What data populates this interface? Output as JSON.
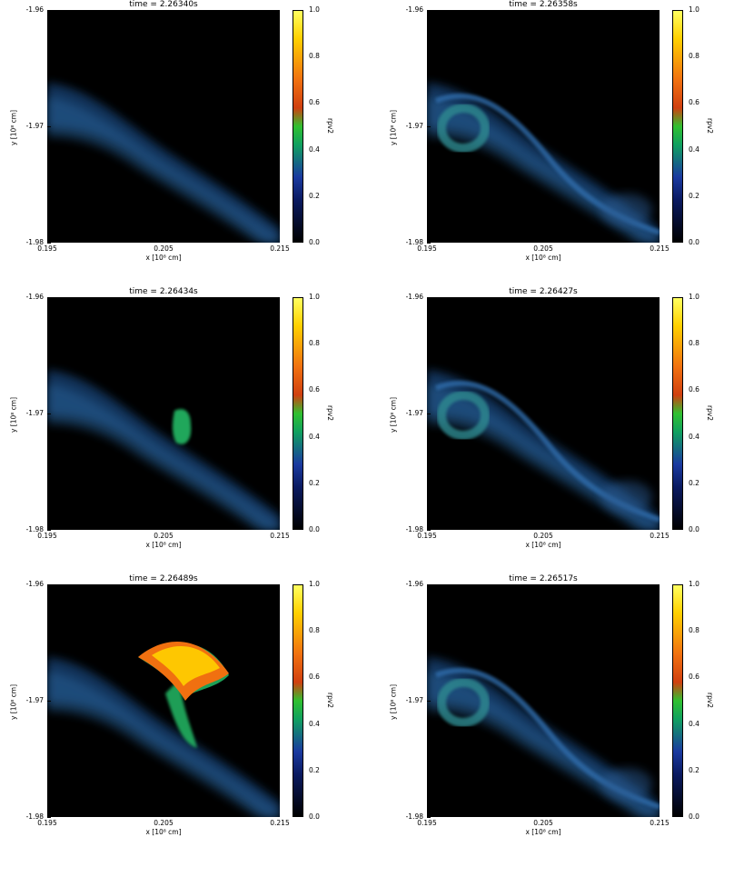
{
  "colors": {
    "plot_bg": "#000000",
    "smoke": "#1f4f8a",
    "green": "#20b060",
    "orange": "#f07010",
    "yellow": "#ffd000"
  },
  "chart_data": [
    {
      "type": "heatmap",
      "title": "time = 2.26340s",
      "xlabel": "x [10⁸ cm]",
      "ylabel": "y [10⁸ cm]",
      "xticks": [
        "0.195",
        "0.205",
        "0.215"
      ],
      "yticks": [
        "-1.96",
        "-1.97",
        "-1.98"
      ],
      "xlim": [
        0.195,
        0.215
      ],
      "ylim": [
        -1.98,
        -1.96
      ],
      "colorbar": {
        "label": "rpv2",
        "ticks": [
          "0.0",
          "0.2",
          "0.4",
          "0.6",
          "0.8",
          "1.0"
        ],
        "range": [
          0,
          1
        ]
      },
      "max_value": 0.3
    },
    {
      "type": "heatmap",
      "title": "time = 2.26358s",
      "xlabel": "x [10⁸ cm]",
      "ylabel": "y [10⁸ cm]",
      "xticks": [
        "0.195",
        "0.205",
        "0.215"
      ],
      "yticks": [
        "-1.96",
        "-1.97",
        "-1.98"
      ],
      "xlim": [
        0.195,
        0.215
      ],
      "ylim": [
        -1.98,
        -1.96
      ],
      "colorbar": {
        "label": "rpv2",
        "ticks": [
          "0.0",
          "0.2",
          "0.4",
          "0.6",
          "0.8",
          "1.0"
        ],
        "range": [
          0,
          1
        ]
      },
      "max_value": 0.4
    },
    {
      "type": "heatmap",
      "title": "time = 2.26434s",
      "xlabel": "x [10⁸ cm]",
      "ylabel": "y [10⁸ cm]",
      "xticks": [
        "0.195",
        "0.205",
        "0.215"
      ],
      "yticks": [
        "-1.96",
        "-1.97",
        "-1.98"
      ],
      "xlim": [
        0.195,
        0.215
      ],
      "ylim": [
        -1.98,
        -1.96
      ],
      "colorbar": {
        "label": "rpv2",
        "ticks": [
          "0.0",
          "0.2",
          "0.4",
          "0.6",
          "0.8",
          "1.0"
        ],
        "range": [
          0,
          1
        ]
      },
      "max_value": 0.45
    },
    {
      "type": "heatmap",
      "title": "time = 2.26427s",
      "xlabel": "x [10⁸ cm]",
      "ylabel": "y [10⁸ cm]",
      "xticks": [
        "0.195",
        "0.205",
        "0.215"
      ],
      "yticks": [
        "-1.96",
        "-1.97",
        "-1.98"
      ],
      "xlim": [
        0.195,
        0.215
      ],
      "ylim": [
        -1.98,
        -1.96
      ],
      "colorbar": {
        "label": "rpv2",
        "ticks": [
          "0.0",
          "0.2",
          "0.4",
          "0.6",
          "0.8",
          "1.0"
        ],
        "range": [
          0,
          1
        ]
      },
      "max_value": 0.35
    },
    {
      "type": "heatmap",
      "title": "time = 2.26489s",
      "xlabel": "x [10⁸ cm]",
      "ylabel": "y [10⁸ cm]",
      "xticks": [
        "0.195",
        "0.205",
        "0.215"
      ],
      "yticks": [
        "-1.96",
        "-1.97",
        "-1.98"
      ],
      "xlim": [
        0.195,
        0.215
      ],
      "ylim": [
        -1.98,
        -1.96
      ],
      "colorbar": {
        "label": "rpv2",
        "ticks": [
          "0.0",
          "0.2",
          "0.4",
          "0.6",
          "0.8",
          "1.0"
        ],
        "range": [
          0,
          1
        ]
      },
      "max_value": 1.0
    },
    {
      "type": "heatmap",
      "title": "time = 2.26517s",
      "xlabel": "x [10⁸ cm]",
      "ylabel": "y [10⁸ cm]",
      "xticks": [
        "0.195",
        "0.205",
        "0.215"
      ],
      "yticks": [
        "-1.96",
        "-1.97",
        "-1.98"
      ],
      "xlim": [
        0.195,
        0.215
      ],
      "ylim": [
        -1.98,
        -1.96
      ],
      "colorbar": {
        "label": "rpv2",
        "ticks": [
          "0.0",
          "0.2",
          "0.4",
          "0.6",
          "0.8",
          "1.0"
        ],
        "range": [
          0,
          1
        ]
      },
      "max_value": 0.35
    }
  ]
}
